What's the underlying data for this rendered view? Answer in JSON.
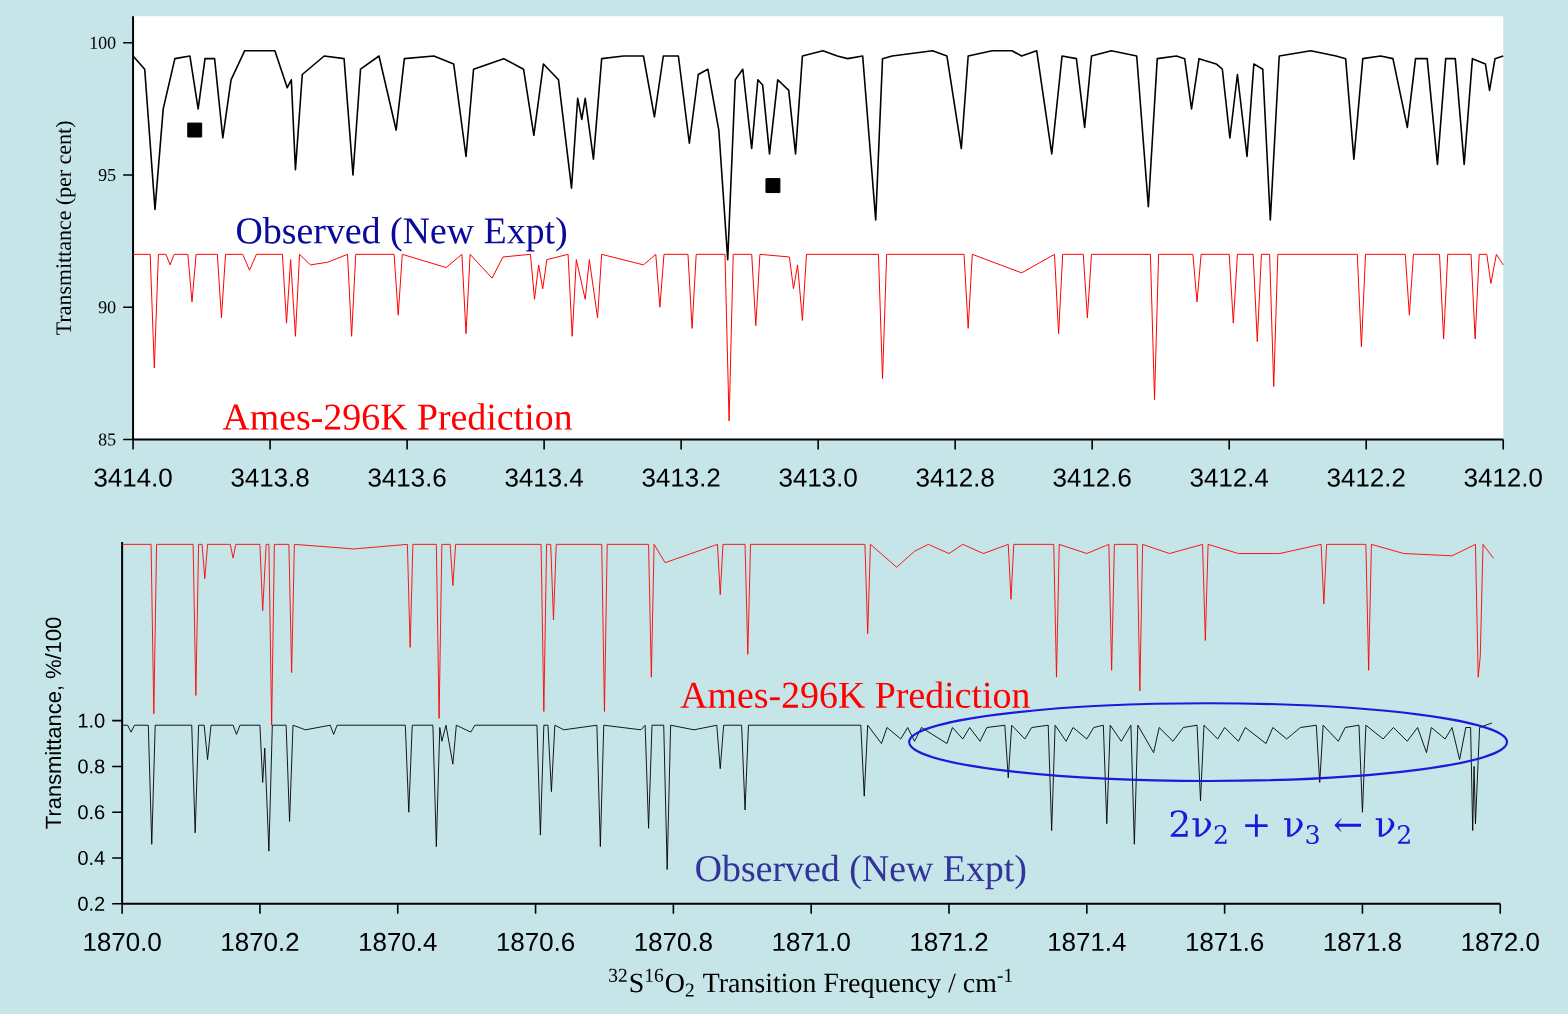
{
  "chart_data": [
    {
      "type": "line",
      "ylabel": "Transmittance (per cent)",
      "xlim": [
        3414.0,
        3412.0
      ],
      "ylim": [
        85,
        101
      ],
      "xticks": [
        {
          "value": 3414.0,
          "label": "3414.0"
        },
        {
          "value": 3413.8,
          "label": "3413.8"
        },
        {
          "value": 3413.6,
          "label": "3413.6"
        },
        {
          "value": 3413.4,
          "label": "3413.4"
        },
        {
          "value": 3413.2,
          "label": "3413.2"
        },
        {
          "value": 3413.0,
          "label": "3413.0"
        },
        {
          "value": 3412.8,
          "label": "3412.8"
        },
        {
          "value": 3412.6,
          "label": "3412.6"
        },
        {
          "value": 3412.4,
          "label": "3412.4"
        },
        {
          "value": 3412.2,
          "label": "3412.2"
        },
        {
          "value": 3412.0,
          "label": "3412.0"
        }
      ],
      "yticks": [
        85,
        90,
        95,
        100
      ],
      "annotations": [
        "Observed (New Expt)",
        "Ames-296K Prediction"
      ],
      "series": [
        {
          "color": "#000000",
          "x": [
            3414.0,
            3413.983,
            3413.968,
            3413.956,
            3413.939,
            3413.917,
            3413.905,
            3413.895,
            3413.881,
            3413.869,
            3413.857,
            3413.837,
            3413.793,
            3413.775,
            3413.769,
            3413.763,
            3413.753,
            3413.721,
            3413.692,
            3413.679,
            3413.668,
            3413.641,
            3413.616,
            3413.604,
            3413.561,
            3413.532,
            3413.514,
            3413.503,
            3413.459,
            3413.43,
            3413.415,
            3413.401,
            3413.379,
            3413.36,
            3413.351,
            3413.345,
            3413.34,
            3413.328,
            3413.316,
            3413.284,
            3413.255,
            3413.239,
            3413.226,
            3413.204,
            3413.188,
            3413.175,
            3413.161,
            3413.145,
            3413.132,
            3413.121,
            3413.11,
            3413.097,
            3413.088,
            3413.081,
            3413.071,
            3413.059,
            3413.043,
            3413.033,
            3413.023,
            3412.993,
            3412.972,
            3412.957,
            3412.935,
            3412.916,
            3412.906,
            3412.892,
            3412.833,
            3412.812,
            3412.791,
            3412.781,
            3412.746,
            3412.717,
            3412.703,
            3412.681,
            3412.659,
            3412.644,
            3412.623,
            3412.611,
            3412.601,
            3412.572,
            3412.535,
            3412.518,
            3412.505,
            3412.477,
            3412.465,
            3412.455,
            3412.444,
            3412.419,
            3412.41,
            3412.399,
            3412.388,
            3412.374,
            3412.364,
            3412.351,
            3412.34,
            3412.327,
            3412.281,
            3412.244,
            3412.23,
            3412.218,
            3412.205,
            3412.179,
            3412.161,
            3412.14,
            3412.128,
            3412.111,
            3412.096,
            3412.084,
            3412.07,
            3412.057,
            3412.045,
            3412.026,
            3412.02,
            3412.012,
            3412.0
          ],
          "values": [
            99.5,
            99.0,
            93.7,
            97.5,
            99.4,
            99.5,
            97.5,
            99.4,
            99.4,
            96.4,
            98.6,
            99.7,
            99.7,
            98.3,
            98.6,
            95.2,
            98.8,
            99.5,
            99.4,
            95.0,
            99.0,
            99.5,
            96.7,
            99.4,
            99.5,
            99.2,
            95.7,
            99.0,
            99.4,
            99.0,
            96.5,
            99.2,
            98.6,
            94.5,
            97.9,
            97.1,
            97.9,
            95.6,
            99.4,
            99.5,
            99.5,
            97.2,
            99.5,
            99.5,
            96.2,
            98.8,
            99.0,
            96.7,
            91.8,
            98.6,
            99.0,
            96.0,
            98.6,
            98.4,
            95.8,
            98.6,
            98.2,
            95.8,
            99.5,
            99.7,
            99.5,
            99.4,
            99.5,
            93.3,
            99.4,
            99.5,
            99.7,
            99.5,
            96.0,
            99.5,
            99.7,
            99.7,
            99.5,
            99.7,
            95.8,
            99.5,
            99.4,
            96.8,
            99.5,
            99.7,
            99.5,
            93.8,
            99.4,
            99.5,
            99.4,
            97.5,
            99.4,
            99.2,
            99.0,
            96.4,
            98.8,
            95.7,
            99.2,
            99.0,
            93.3,
            99.5,
            99.7,
            99.5,
            99.4,
            95.6,
            99.4,
            99.5,
            99.4,
            96.8,
            99.4,
            99.4,
            95.4,
            99.4,
            99.4,
            95.4,
            99.4,
            99.2,
            98.2,
            99.4,
            99.5
          ]
        },
        {
          "color": "#ff0000",
          "x": [
            3414.0,
            3413.975,
            3413.969,
            3413.963,
            3413.952,
            3413.946,
            3413.94,
            3413.92,
            3413.914,
            3413.908,
            3413.877,
            3413.871,
            3413.865,
            3413.84,
            3413.83,
            3413.82,
            3413.782,
            3413.776,
            3413.77,
            3413.763,
            3413.757,
            3413.741,
            3413.716,
            3413.687,
            3413.681,
            3413.675,
            3413.619,
            3413.613,
            3413.607,
            3413.543,
            3413.52,
            3413.514,
            3413.508,
            3413.476,
            3413.46,
            3413.42,
            3413.414,
            3413.408,
            3413.402,
            3413.396,
            3413.365,
            3413.359,
            3413.353,
            3413.34,
            3413.334,
            3413.322,
            3413.316,
            3413.255,
            3413.237,
            3413.231,
            3413.225,
            3413.19,
            3413.184,
            3413.178,
            3413.136,
            3413.13,
            3413.124,
            3413.097,
            3413.091,
            3413.085,
            3413.042,
            3413.036,
            3413.03,
            3413.023,
            3413.017,
            3412.912,
            3412.906,
            3412.9,
            3412.787,
            3412.781,
            3412.775,
            3412.703,
            3412.655,
            3412.649,
            3412.643,
            3412.613,
            3412.607,
            3412.601,
            3412.515,
            3412.509,
            3412.503,
            3412.453,
            3412.447,
            3412.441,
            3412.4,
            3412.394,
            3412.388,
            3412.365,
            3412.359,
            3412.353,
            3412.341,
            3412.335,
            3412.329,
            3412.213,
            3412.207,
            3412.201,
            3412.143,
            3412.137,
            3412.131,
            3412.093,
            3412.087,
            3412.081,
            3412.047,
            3412.041,
            3412.035,
            3412.024,
            3412.018,
            3412.01,
            3412.0
          ],
          "values": [
            92.0,
            92.0,
            87.7,
            92.0,
            92.0,
            91.6,
            92.0,
            92.0,
            90.2,
            92.0,
            92.0,
            89.6,
            92.0,
            92.0,
            91.4,
            92.0,
            92.0,
            89.4,
            91.8,
            88.9,
            92.0,
            91.6,
            91.7,
            92.0,
            88.9,
            92.0,
            92.0,
            89.7,
            92.0,
            91.5,
            92.0,
            89.0,
            92.0,
            91.1,
            91.9,
            92.0,
            90.3,
            91.6,
            90.7,
            91.8,
            92.0,
            88.9,
            91.8,
            90.3,
            91.8,
            89.6,
            92.0,
            91.6,
            92.0,
            90.0,
            92.0,
            92.0,
            89.2,
            92.0,
            92.0,
            85.7,
            92.0,
            92.0,
            89.3,
            92.0,
            91.9,
            90.7,
            91.6,
            89.5,
            92.0,
            92.0,
            87.3,
            92.0,
            92.0,
            89.2,
            92.0,
            91.3,
            92.0,
            89.0,
            92.0,
            92.0,
            89.6,
            92.0,
            92.0,
            86.5,
            92.0,
            92.0,
            90.2,
            92.0,
            92.0,
            89.4,
            92.0,
            92.0,
            88.7,
            92.0,
            92.0,
            87.0,
            92.0,
            92.0,
            88.5,
            92.0,
            92.0,
            89.7,
            92.0,
            92.0,
            88.8,
            92.0,
            92.0,
            88.8,
            92.0,
            92.0,
            90.9,
            92.0,
            91.6
          ]
        },
        {
          "type": "scatter",
          "marker": "square",
          "color": "#000000",
          "x": [
            3413.91,
            3413.066
          ],
          "values": [
            96.7,
            94.6
          ]
        }
      ]
    },
    {
      "type": "line",
      "xlabel": "$^{32}$S$^{16}$O$_{2}$ Transition Frequency / cm$^{-1}$",
      "ylabel": "Transmittance, %/100",
      "xlim": [
        1870.0,
        1872.0
      ],
      "ylim": [
        0.2,
        1.78
      ],
      "xticks": [
        {
          "value": 1870.0,
          "label": "1870.0"
        },
        {
          "value": 1870.2,
          "label": "1870.2"
        },
        {
          "value": 1870.4,
          "label": "1870.4"
        },
        {
          "value": 1870.6,
          "label": "1870.6"
        },
        {
          "value": 1870.8,
          "label": "1870.8"
        },
        {
          "value": 1871.0,
          "label": "1871.0"
        },
        {
          "value": 1871.2,
          "label": "1871.2"
        },
        {
          "value": 1871.4,
          "label": "1871.4"
        },
        {
          "value": 1871.6,
          "label": "1871.6"
        },
        {
          "value": 1871.8,
          "label": "1871.8"
        },
        {
          "value": 1872.0,
          "label": "1872.0"
        }
      ],
      "yticks": [
        0.2,
        0.4,
        0.6,
        0.8,
        {
          "value": 1.0,
          "label": "1.0"
        }
      ],
      "annotations": [
        "Ames-296K Prediction",
        "Observed (New Expt)",
        "2ν$_{2}$ + ν$_{3}$ ← ν$_{2}$"
      ],
      "series": [
        {
          "color": "#ff0000",
          "x": [
            1870.0,
            1870.042,
            1870.046,
            1870.05,
            1870.103,
            1870.107,
            1870.111,
            1870.116,
            1870.12,
            1870.124,
            1870.157,
            1870.161,
            1870.165,
            1870.2,
            1870.204,
            1870.209,
            1870.213,
            1870.217,
            1870.221,
            1870.242,
            1870.246,
            1870.25,
            1870.336,
            1870.414,
            1870.418,
            1870.422,
            1870.456,
            1870.46,
            1870.464,
            1870.476,
            1870.48,
            1870.484,
            1870.608,
            1870.612,
            1870.616,
            1870.622,
            1870.626,
            1870.63,
            1870.696,
            1870.7,
            1870.704,
            1870.764,
            1870.768,
            1870.772,
            1870.788,
            1870.864,
            1870.868,
            1870.872,
            1870.904,
            1870.908,
            1870.912,
            1871.078,
            1871.082,
            1871.086,
            1871.124,
            1871.15,
            1871.17,
            1871.2,
            1871.22,
            1871.25,
            1871.286,
            1871.29,
            1871.294,
            1871.352,
            1871.356,
            1871.36,
            1871.4,
            1871.432,
            1871.436,
            1871.44,
            1871.473,
            1871.477,
            1871.481,
            1871.52,
            1871.568,
            1871.572,
            1871.576,
            1871.62,
            1871.68,
            1871.74,
            1871.744,
            1871.748,
            1871.805,
            1871.809,
            1871.813,
            1871.86,
            1871.93,
            1871.964,
            1871.968,
            1871.971,
            1871.975,
            1871.99
          ],
          "values": [
            1.77,
            1.77,
            1.03,
            1.77,
            1.77,
            1.11,
            1.77,
            1.77,
            1.62,
            1.77,
            1.77,
            1.71,
            1.77,
            1.77,
            1.48,
            1.77,
            1.77,
            0.98,
            1.77,
            1.77,
            1.21,
            1.77,
            1.75,
            1.77,
            1.32,
            1.77,
            1.77,
            1.01,
            1.77,
            1.77,
            1.59,
            1.77,
            1.77,
            1.04,
            1.77,
            1.77,
            1.44,
            1.77,
            1.77,
            1.04,
            1.77,
            1.77,
            1.19,
            1.77,
            1.69,
            1.77,
            1.55,
            1.77,
            1.77,
            1.29,
            1.77,
            1.77,
            1.38,
            1.77,
            1.67,
            1.74,
            1.77,
            1.73,
            1.77,
            1.73,
            1.77,
            1.53,
            1.77,
            1.77,
            1.19,
            1.77,
            1.73,
            1.77,
            1.22,
            1.77,
            1.77,
            1.13,
            1.77,
            1.73,
            1.77,
            1.35,
            1.77,
            1.73,
            1.73,
            1.77,
            1.51,
            1.77,
            1.77,
            1.22,
            1.77,
            1.73,
            1.72,
            1.77,
            1.19,
            1.28,
            1.77,
            1.71
          ]
        },
        {
          "color": "#000000",
          "x": [
            1870.0,
            1870.008,
            1870.013,
            1870.018,
            1870.038,
            1870.043,
            1870.048,
            1870.101,
            1870.106,
            1870.111,
            1870.119,
            1870.124,
            1870.129,
            1870.161,
            1870.166,
            1870.171,
            1870.2,
            1870.204,
            1870.207,
            1870.213,
            1870.218,
            1870.238,
            1870.243,
            1870.248,
            1870.266,
            1870.302,
            1870.307,
            1870.312,
            1870.411,
            1870.416,
            1870.421,
            1870.451,
            1870.456,
            1870.461,
            1870.464,
            1870.47,
            1870.48,
            1870.485,
            1870.506,
            1870.512,
            1870.602,
            1870.607,
            1870.612,
            1870.618,
            1870.623,
            1870.628,
            1870.641,
            1870.689,
            1870.694,
            1870.699,
            1870.753,
            1870.759,
            1870.764,
            1870.769,
            1870.786,
            1870.791,
            1870.796,
            1870.83,
            1870.863,
            1870.868,
            1870.873,
            1870.899,
            1870.904,
            1870.909,
            1871.0,
            1871.072,
            1871.077,
            1871.082,
            1871.102,
            1871.11,
            1871.13,
            1871.14,
            1871.15,
            1871.16,
            1871.197,
            1871.205,
            1871.22,
            1871.23,
            1871.245,
            1871.255,
            1871.281,
            1871.286,
            1871.291,
            1871.31,
            1871.32,
            1871.344,
            1871.349,
            1871.354,
            1871.37,
            1871.38,
            1871.4,
            1871.41,
            1871.424,
            1871.429,
            1871.434,
            1871.45,
            1871.464,
            1871.469,
            1871.474,
            1871.497,
            1871.505,
            1871.525,
            1871.54,
            1871.56,
            1871.565,
            1871.57,
            1871.59,
            1871.6,
            1871.62,
            1871.63,
            1871.66,
            1871.67,
            1871.69,
            1871.71,
            1871.733,
            1871.738,
            1871.743,
            1871.765,
            1871.775,
            1871.795,
            1871.8,
            1871.805,
            1871.83,
            1871.845,
            1871.865,
            1871.88,
            1871.893,
            1871.9,
            1871.92,
            1871.93,
            1871.941,
            1871.95,
            1871.957,
            1871.96,
            1871.962,
            1871.964,
            1871.97,
            1871.988
          ],
          "values": [
            0.98,
            0.98,
            0.95,
            0.98,
            0.98,
            0.46,
            0.98,
            0.98,
            0.51,
            0.98,
            0.98,
            0.83,
            0.98,
            0.98,
            0.94,
            0.98,
            0.98,
            0.73,
            0.88,
            0.43,
            0.98,
            0.98,
            0.56,
            0.98,
            0.96,
            0.98,
            0.94,
            0.98,
            0.98,
            0.6,
            0.98,
            0.98,
            0.45,
            0.97,
            0.91,
            0.98,
            0.81,
            0.98,
            0.95,
            0.98,
            0.98,
            0.5,
            0.98,
            0.98,
            0.69,
            0.98,
            0.96,
            0.98,
            0.45,
            0.98,
            0.96,
            0.98,
            0.53,
            0.98,
            0.98,
            0.35,
            0.98,
            0.96,
            0.98,
            0.79,
            0.98,
            0.98,
            0.61,
            0.98,
            0.98,
            0.98,
            0.67,
            0.98,
            0.9,
            0.97,
            0.92,
            0.97,
            0.91,
            0.97,
            0.9,
            0.97,
            0.92,
            0.97,
            0.91,
            0.97,
            0.98,
            0.75,
            0.98,
            0.92,
            0.97,
            0.98,
            0.52,
            0.98,
            0.91,
            0.97,
            0.92,
            0.97,
            0.98,
            0.55,
            0.98,
            0.91,
            0.98,
            0.46,
            0.98,
            0.86,
            0.97,
            0.91,
            0.97,
            0.98,
            0.65,
            0.98,
            0.92,
            0.97,
            0.91,
            0.97,
            0.9,
            0.97,
            0.92,
            0.97,
            0.98,
            0.73,
            0.98,
            0.91,
            0.97,
            0.98,
            0.6,
            0.98,
            0.92,
            0.97,
            0.91,
            0.97,
            0.86,
            0.97,
            0.92,
            0.97,
            0.83,
            0.97,
            0.97,
            0.52,
            0.8,
            0.55,
            0.97,
            0.99
          ]
        }
      ]
    }
  ]
}
